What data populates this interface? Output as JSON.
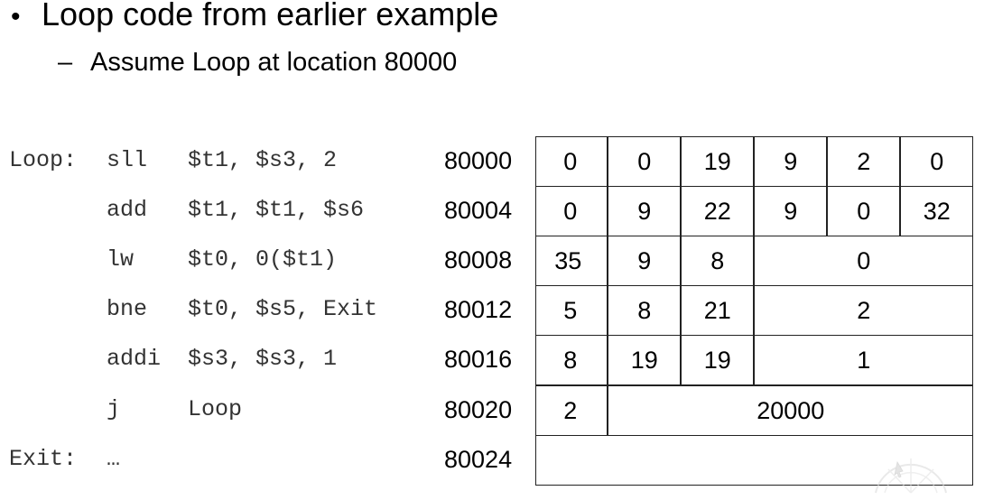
{
  "slide": {
    "bullet": "Loop code from earlier example",
    "bullet_marker": "•",
    "sub_bullet": "Assume Loop at location 80000",
    "sub_bullet_marker": "–"
  },
  "code": [
    {
      "label": "Loop:",
      "op": "sll",
      "args": "$t1, $s3, 2"
    },
    {
      "label": "",
      "op": "add",
      "args": "$t1, $t1, $s6"
    },
    {
      "label": "",
      "op": "lw",
      "args": "$t0, 0($t1)"
    },
    {
      "label": "",
      "op": "bne",
      "args": "$t0, $s5, Exit"
    },
    {
      "label": "",
      "op": "addi",
      "args": "$s3, $s3, 1"
    },
    {
      "label": "",
      "op": "j",
      "args": "Loop"
    },
    {
      "label": "Exit:",
      "op": "…",
      "args": ""
    }
  ],
  "addresses": [
    "80000",
    "80004",
    "80008",
    "80012",
    "80016",
    "80020",
    "80024"
  ],
  "machine_code": [
    [
      "0",
      "0",
      "19",
      "9",
      "2",
      "0"
    ],
    [
      "0",
      "9",
      "22",
      "9",
      "0",
      "32"
    ],
    [
      "35",
      "9",
      "8",
      "0"
    ],
    [
      "5",
      "8",
      "21",
      "2"
    ],
    [
      "8",
      "19",
      "19",
      "1"
    ],
    [
      "2",
      "20000"
    ],
    [
      ""
    ]
  ],
  "watermark_icon": "presentation-watermark-icon"
}
